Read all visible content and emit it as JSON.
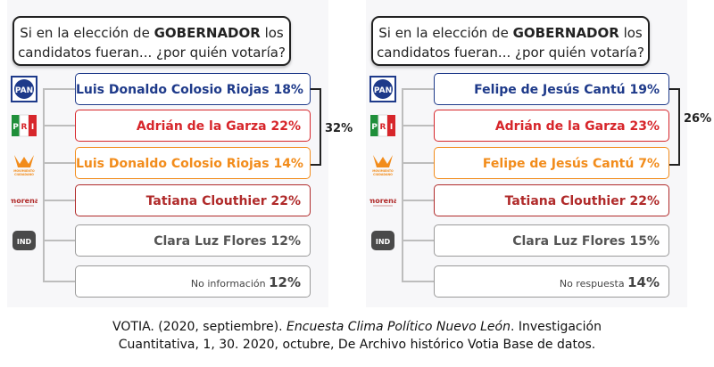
{
  "chart_data": [
    {
      "type": "table",
      "title": "Si en la elección de GOBERNADOR los candidatos fueran... ¿por quién votaría?",
      "title_pre": "Si en la elección de ",
      "title_bold": "GOBERNADOR",
      "title_post": " los candidatos fueran... ¿por quién votaría?",
      "rows": [
        {
          "party": "PAN",
          "candidate": "Luis Donaldo Colosio Riojas",
          "value": 18,
          "label": "18%",
          "color": "#1e3a8a"
        },
        {
          "party": "PRI",
          "candidate": "Adrián de la Garza",
          "value": 22,
          "label": "22%",
          "color": "#d7262b"
        },
        {
          "party": "MOVIMIENTO CIUDADANO",
          "candidate": "Luis Donaldo Colosio Riojas",
          "value": 14,
          "label": "14%",
          "color": "#f28c1b"
        },
        {
          "party": "morena",
          "candidate": "Tatiana Clouthier",
          "value": 22,
          "label": "22%",
          "color": "#b02a2a"
        },
        {
          "party": "IND",
          "candidate": "Clara Luz Flores",
          "value": 12,
          "label": "12%",
          "color": "#555555"
        },
        {
          "party": "",
          "candidate": "No información",
          "value": 12,
          "label": "12%",
          "color": "#444444"
        }
      ],
      "bracket_label": "32%"
    },
    {
      "type": "table",
      "title": "Si en la elección de GOBERNADOR los candidatos fueran... ¿por quién votaría?",
      "title_pre": "Si en la elección de ",
      "title_bold": "GOBERNADOR",
      "title_post": " los candidatos fueran... ¿por quién votaría?",
      "rows": [
        {
          "party": "PAN",
          "candidate": "Felipe de Jesús Cantú",
          "value": 19,
          "label": "19%",
          "color": "#1e3a8a"
        },
        {
          "party": "PRI",
          "candidate": "Adrián de la Garza",
          "value": 23,
          "label": "23%",
          "color": "#d7262b"
        },
        {
          "party": "MOVIMIENTO CIUDADANO",
          "candidate": "Felipe de Jesús Cantú",
          "value": 7,
          "label": "7%",
          "color": "#f28c1b"
        },
        {
          "party": "morena",
          "candidate": "Tatiana Clouthier",
          "value": 22,
          "label": "22%",
          "color": "#b02a2a"
        },
        {
          "party": "IND",
          "candidate": "Clara Luz Flores",
          "value": 15,
          "label": "15%",
          "color": "#555555"
        },
        {
          "party": "",
          "candidate": "No respuesta",
          "value": 14,
          "label": "14%",
          "color": "#444444"
        }
      ],
      "bracket_label": "26%"
    }
  ],
  "caption": {
    "line1_pre": "VOTIA. (2020, septiembre). ",
    "line1_italic": "Encuesta Clima Político Nuevo León",
    "line1_post": ". Investigación",
    "line2": "Cuantitativa, 1, 30. 2020, octubre, De Archivo histórico Votia Base de datos."
  },
  "logos": {
    "pan": "PAN",
    "pri_p": "P",
    "pri_r": "R",
    "pri_i": "I",
    "mc_line1": "MOVIMIENTO",
    "mc_line2": "CIUDADANO",
    "morena": "morena",
    "ind": "IND"
  }
}
